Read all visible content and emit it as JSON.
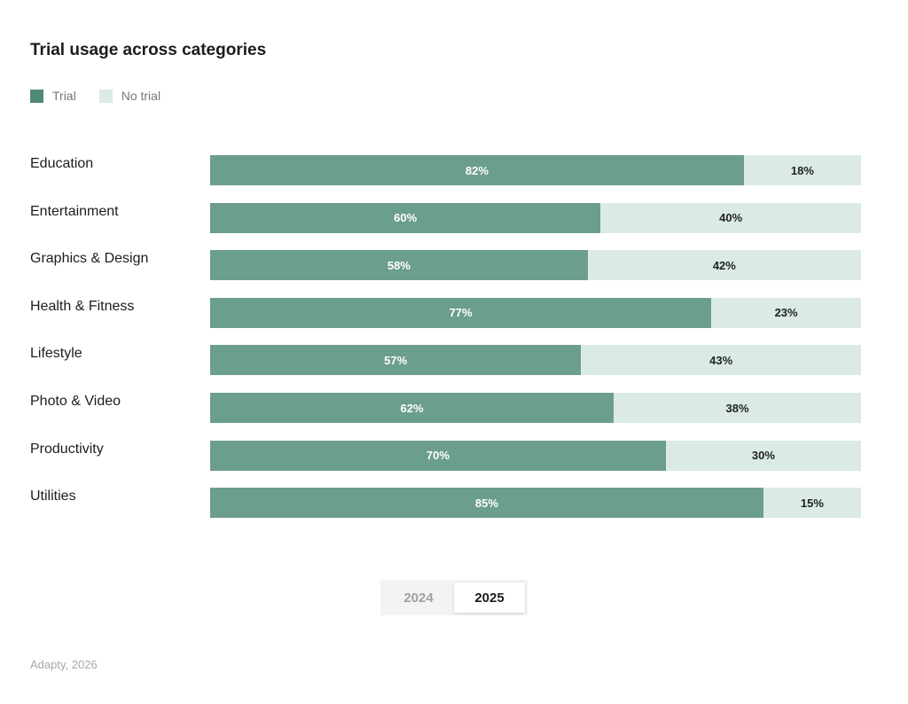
{
  "chart_data": {
    "type": "bar",
    "orientation": "horizontal",
    "stacked": true,
    "title": "Trial usage across categories",
    "categories": [
      "Education",
      "Entertainment",
      "Graphics & Design",
      "Health & Fitness",
      "Lifestyle",
      "Photo & Video",
      "Productivity",
      "Utilities"
    ],
    "series": [
      {
        "name": "Trial",
        "values": [
          82,
          60,
          58,
          77,
          57,
          62,
          70,
          85
        ],
        "color": "#6b9e8b",
        "legend_color": "#4f8a76"
      },
      {
        "name": "No trial",
        "values": [
          18,
          40,
          42,
          23,
          43,
          38,
          30,
          15
        ],
        "color": "#dbebe4"
      }
    ],
    "value_format": "percent",
    "xlim": [
      0,
      100
    ],
    "grid": false,
    "legend_position": "top-left"
  },
  "year_toggle": {
    "options": [
      "2024",
      "2025"
    ],
    "selected": "2025"
  },
  "source": "Adapty, 2026"
}
